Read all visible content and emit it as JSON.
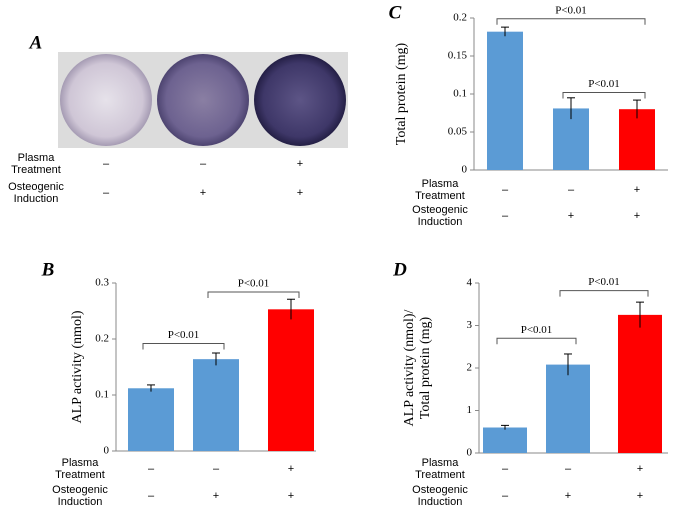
{
  "panel_a": {
    "label": "A",
    "condition_rows": [
      {
        "label": [
          "Plasma",
          "Treatment"
        ],
        "signs": [
          "–",
          "–",
          "+"
        ]
      },
      {
        "label": [
          "Osteogenic",
          "Induction"
        ],
        "signs": [
          "–",
          "+",
          "+"
        ]
      }
    ]
  },
  "chart_data": [
    {
      "type": "bar",
      "panel": "C",
      "ylabel": [
        "Total protein (mg)"
      ],
      "categories": [
        null,
        null,
        null
      ],
      "values": [
        0.182,
        0.081,
        0.08
      ],
      "errors": [
        0.006,
        0.014,
        0.012
      ],
      "colors": [
        "#5b9bd5",
        "#5b9bd5",
        "#ff0000"
      ],
      "ylim": [
        0,
        0.2
      ],
      "yticks": [
        0,
        0.05,
        0.1,
        0.15,
        0.2
      ],
      "annotations": [
        {
          "from": 0,
          "to": 2,
          "y": 0.199,
          "label": "P<0.01"
        },
        {
          "from": 1,
          "to": 2,
          "y": 0.102,
          "label": "P<0.01"
        }
      ],
      "condition_rows": [
        {
          "label": [
            "Plasma",
            "Treatment"
          ],
          "signs": [
            "–",
            "–",
            "+"
          ]
        },
        {
          "label": [
            "Osteogenic",
            "Induction"
          ],
          "signs": [
            "–",
            "+",
            "+"
          ]
        }
      ]
    },
    {
      "type": "bar",
      "panel": "B",
      "ylabel": [
        "ALP activity (nmol)"
      ],
      "categories": [
        null,
        null,
        null
      ],
      "values": [
        0.112,
        0.164,
        0.253
      ],
      "errors": [
        0.006,
        0.011,
        0.018
      ],
      "colors": [
        "#5b9bd5",
        "#5b9bd5",
        "#ff0000"
      ],
      "ylim": [
        0,
        0.3
      ],
      "yticks": [
        0,
        0.1,
        0.2,
        0.3
      ],
      "annotations": [
        {
          "from": 0,
          "to": 1,
          "y": 0.192,
          "label": "P<0.01"
        },
        {
          "from": 1,
          "to": 2,
          "y": 0.284,
          "label": "P<0.01"
        }
      ],
      "condition_rows": [
        {
          "label": [
            "Plasma",
            "Treatment"
          ],
          "signs": [
            "–",
            "–",
            "+"
          ]
        },
        {
          "label": [
            "Osteogenic",
            "Induction"
          ],
          "signs": [
            "–",
            "+",
            "+"
          ]
        }
      ]
    },
    {
      "type": "bar",
      "panel": "D",
      "ylabel": [
        "ALP activity (nmol)/",
        "Total protein (mg)"
      ],
      "categories": [
        null,
        null,
        null
      ],
      "values": [
        0.6,
        2.08,
        3.25
      ],
      "errors": [
        0.05,
        0.25,
        0.3
      ],
      "colors": [
        "#5b9bd5",
        "#5b9bd5",
        "#ff0000"
      ],
      "ylim": [
        0,
        4
      ],
      "yticks": [
        0,
        1,
        2,
        3,
        4
      ],
      "annotations": [
        {
          "from": 0,
          "to": 1,
          "y": 2.7,
          "label": "P<0.01"
        },
        {
          "from": 1,
          "to": 2,
          "y": 3.82,
          "label": "P<0.01"
        }
      ],
      "condition_rows": [
        {
          "label": [
            "Plasma",
            "Treatment"
          ],
          "signs": [
            "–",
            "–",
            "+"
          ]
        },
        {
          "label": [
            "Osteogenic",
            "Induction"
          ],
          "signs": [
            "–",
            "+",
            "+"
          ]
        }
      ]
    }
  ]
}
